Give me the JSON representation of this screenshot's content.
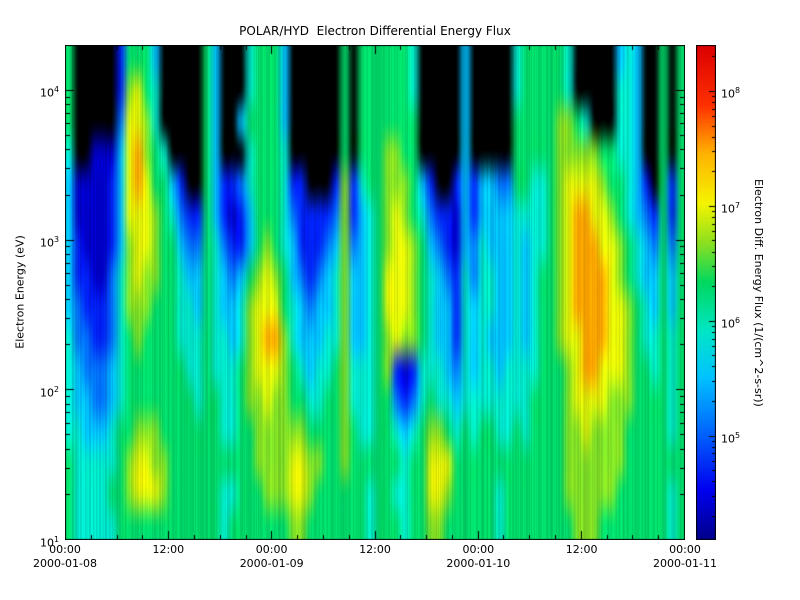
{
  "title": "POLAR/HYD  Electron Differential Energy Flux",
  "axes": {
    "y_label": "Electron Energy (eV)",
    "y_tick_exponents": [
      1,
      2,
      3,
      4
    ],
    "x_ticks": [
      {
        "hour": 0,
        "label": "00:00"
      },
      {
        "hour": 12,
        "label": "12:00"
      },
      {
        "hour": 24,
        "label": "00:00"
      },
      {
        "hour": 36,
        "label": "12:00"
      },
      {
        "hour": 48,
        "label": "00:00"
      },
      {
        "hour": 60,
        "label": "12:00"
      },
      {
        "hour": 72,
        "label": "00:00"
      }
    ],
    "x_dates": [
      {
        "hour": 0,
        "label": "2000-01-08"
      },
      {
        "hour": 24,
        "label": "2000-01-09"
      },
      {
        "hour": 48,
        "label": "2000-01-10"
      },
      {
        "hour": 72,
        "label": "2000-01-11"
      }
    ]
  },
  "colorbar": {
    "label": "Electron Diff. Energy Flux (1/(cm^2-s-sr))",
    "tick_exponents": [
      5,
      6,
      7,
      8
    ],
    "log_range": [
      4.1,
      8.4
    ],
    "colormap_stops": [
      [
        0.0,
        "#00008a"
      ],
      [
        0.1,
        "#0000f0"
      ],
      [
        0.22,
        "#0068ff"
      ],
      [
        0.33,
        "#00c4ff"
      ],
      [
        0.42,
        "#00e6c8"
      ],
      [
        0.52,
        "#00d860"
      ],
      [
        0.6,
        "#8ce020"
      ],
      [
        0.68,
        "#f5f500"
      ],
      [
        0.78,
        "#ffb400"
      ],
      [
        0.88,
        "#ff3000"
      ],
      [
        1.0,
        "#dc0000"
      ]
    ],
    "no_data_color": "#000000"
  },
  "chart_data": {
    "type": "heatmap",
    "title": "POLAR/HYD  Electron Differential Energy Flux",
    "xlabel": "",
    "ylabel": "Electron Energy (eV)",
    "zlabel": "Electron Diff. Energy Flux (1/(cm^2-s-sr))",
    "x_start": "2000-01-08 00:00",
    "x_end": "2000-01-11 00:00",
    "x_span_hours": 72,
    "y_scale": "log",
    "y_range_ev": [
      10,
      20000
    ],
    "y_log_range": [
      1,
      4.3
    ],
    "z_scale": "log",
    "z_tick_values": [
      100000,
      1000000,
      10000000,
      100000000
    ],
    "grid": {
      "columns": 72,
      "column_duration_hours": 1,
      "rows": 16,
      "row_order": "high-energy-top",
      "no_data_char": ".",
      "value_key_log10_flux": {
        "1": 4.35,
        "2": 4.7,
        "3": 5.1,
        "4": 5.5,
        "5": 5.9,
        "6": 6.3,
        "7": 6.65,
        "8": 6.95,
        "9": 7.5
      },
      "rows_data": [
        "6.....26664.....64...56664......6.6666665.....4.....5666665.....454..6.6",
        "6.....27865.....64...56664......6.6666665.....4.....5666665.....554..6.6",
        "6.....38875.....64..466664......6.6666666.....4.....666667765...554..6.6",
        "5..111489765....64...56665......6.6667766.....4.....666667777766554..6.6",
        "41111248986642..642235666522...272566777642..24244336655678888766542.626",
        "411112488876532264212466653222237245678765322142444455556789988765432626",
        "421112478876643365322467654222347345678876432143544454556789998876543636",
        "422113578776654465434678764323457445688876543253554454566789999876544646",
        "432223577766655465445788865434457445688876544254554454566789999887654646",
        "533223567666655565545789975444557445678776544254544454566788999887655656",
        "543334566666665565556788876545567555672125554354554555566678998887665656",
        "544334566666666566556778776655667555663235655455555555666678888777666656",
        "554445667776666666556677777766667655665456776565665565666677877776666656",
        "655555678877666666666677778877667666666566888666666666666677777776666666",
        "655556678887666666556667778876666665665566887666665666666677777766666656",
        "655555666666666666566666667766666665666566776666665666666667776666666656"
      ]
    }
  }
}
